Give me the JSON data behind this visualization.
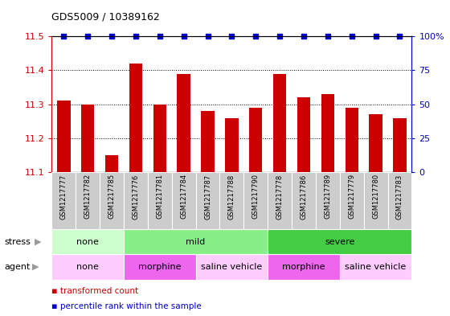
{
  "title": "GDS5009 / 10389162",
  "samples": [
    "GSM1217777",
    "GSM1217782",
    "GSM1217785",
    "GSM1217776",
    "GSM1217781",
    "GSM1217784",
    "GSM1217787",
    "GSM1217788",
    "GSM1217790",
    "GSM1217778",
    "GSM1217786",
    "GSM1217789",
    "GSM1217779",
    "GSM1217780",
    "GSM1217783"
  ],
  "values": [
    11.31,
    11.3,
    11.15,
    11.42,
    11.3,
    11.39,
    11.28,
    11.26,
    11.29,
    11.39,
    11.32,
    11.33,
    11.29,
    11.27,
    11.26
  ],
  "bar_color": "#cc0000",
  "dot_color": "#0000cc",
  "ylim_left": [
    11.1,
    11.5
  ],
  "ylim_right": [
    0,
    100
  ],
  "yticks_left": [
    11.1,
    11.2,
    11.3,
    11.4,
    11.5
  ],
  "yticks_right": [
    0,
    25,
    50,
    75,
    100
  ],
  "ytick_labels_right": [
    "0",
    "25",
    "50",
    "75",
    "100%"
  ],
  "bar_bottom": 11.1,
  "stress_groups": [
    {
      "label": "none",
      "start": 0,
      "end": 3,
      "color": "#ccffcc"
    },
    {
      "label": "mild",
      "start": 3,
      "end": 9,
      "color": "#88ee88"
    },
    {
      "label": "severe",
      "start": 9,
      "end": 15,
      "color": "#44cc44"
    }
  ],
  "agent_groups": [
    {
      "label": "none",
      "start": 0,
      "end": 3,
      "color": "#ffccff"
    },
    {
      "label": "morphine",
      "start": 3,
      "end": 6,
      "color": "#ee66ee"
    },
    {
      "label": "saline vehicle",
      "start": 6,
      "end": 9,
      "color": "#ffccff"
    },
    {
      "label": "morphine",
      "start": 9,
      "end": 12,
      "color": "#ee66ee"
    },
    {
      "label": "saline vehicle",
      "start": 12,
      "end": 15,
      "color": "#ffccff"
    }
  ],
  "stress_row_label": "stress",
  "agent_row_label": "agent",
  "legend_items": [
    {
      "label": "transformed count",
      "color": "#cc0000"
    },
    {
      "label": "percentile rank within the sample",
      "color": "#0000cc"
    }
  ],
  "sample_bg_color": "#cccccc",
  "grid_color": "#888888",
  "fig_bg": "#ffffff"
}
